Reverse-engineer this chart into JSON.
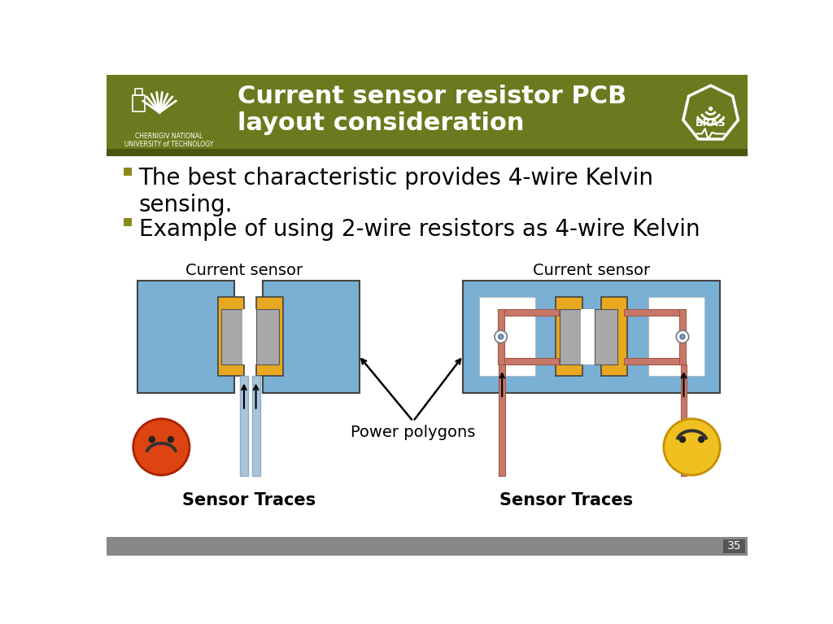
{
  "title": "Current sensor resistor PCB\nlayout consideration",
  "title_color": "#ffffff",
  "header_bg": "#6b7a1e",
  "header_dark": "#4a5510",
  "slide_bg": "#ffffff",
  "footer_bg": "#888888",
  "footer_dark": "#555555",
  "bullet1": "The best characteristic provides 4-wire Kelvin\nsensing.",
  "bullet2": "Example of using 2-wire resistors as 4-wire Kelvin",
  "label_left": "Current sensor",
  "label_right": "Current sensor",
  "label_traces_left": "Sensor Traces",
  "label_traces_right": "Sensor Traces",
  "label_power": "Power polygons",
  "pcb_blue": "#7ab0d4",
  "pad_gold": "#e8a820",
  "resistor_gray": "#a8a8a8",
  "resistor_mid": "#c0c0c0",
  "trace_blue_light": "#aac4dc",
  "trace_blue_dark": "#8aaec8",
  "kelvin_trace": "#c87868",
  "kelvin_dark": "#a05848",
  "white_pad": "#ffffff",
  "bullet_color": "#8b8b1a",
  "text_color": "#000000",
  "sad_face_fill": "#dd4411",
  "sad_face_edge": "#aa2200",
  "happy_face_fill": "#f0c020",
  "happy_face_edge": "#c89000",
  "eye_color": "#222222",
  "mouth_color": "#333333",
  "footer_number": "35",
  "bras_outline": "#ffffff"
}
